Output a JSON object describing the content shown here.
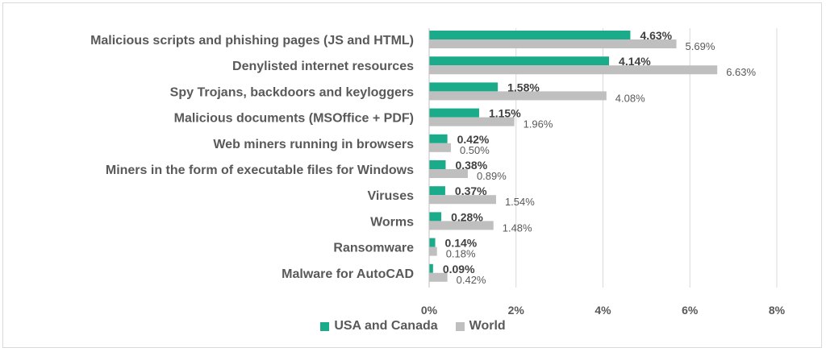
{
  "chart_data": {
    "type": "bar",
    "orientation": "horizontal",
    "categories": [
      "Malicious scripts and phishing pages (JS and HTML)",
      "Denylisted internet resources",
      "Spy Trojans, backdoors and keyloggers",
      "Malicious documents (MSOffice + PDF)",
      "Web miners running in browsers",
      "Miners in the form of executable files for Windows",
      "Viruses",
      "Worms",
      "Ransomware",
      "Malware for AutoCAD"
    ],
    "series": [
      {
        "name": "USA and Canada",
        "color": "#1aab8a",
        "values": [
          4.63,
          4.14,
          1.58,
          1.15,
          0.42,
          0.38,
          0.37,
          0.28,
          0.14,
          0.09
        ],
        "labels": [
          "4.63%",
          "4.14%",
          "1.58%",
          "1.15%",
          "0.42%",
          "0.38%",
          "0.37%",
          "0.28%",
          "0.14%",
          "0.09%"
        ]
      },
      {
        "name": "World",
        "color": "#bfbfbf",
        "values": [
          5.69,
          6.63,
          4.08,
          1.96,
          0.5,
          0.89,
          1.54,
          1.48,
          0.18,
          0.42
        ],
        "labels": [
          "5.69%",
          "6.63%",
          "4.08%",
          "1.96%",
          "0.50%",
          "0.89%",
          "1.54%",
          "1.48%",
          "0.18%",
          "0.42%"
        ]
      }
    ],
    "xlim": [
      0,
      8
    ],
    "xticks": [
      0,
      2,
      4,
      6,
      8
    ],
    "xtick_labels": [
      "0%",
      "2%",
      "4%",
      "6%",
      "8%"
    ],
    "grid": "vertical",
    "legend": "bottom-center"
  }
}
